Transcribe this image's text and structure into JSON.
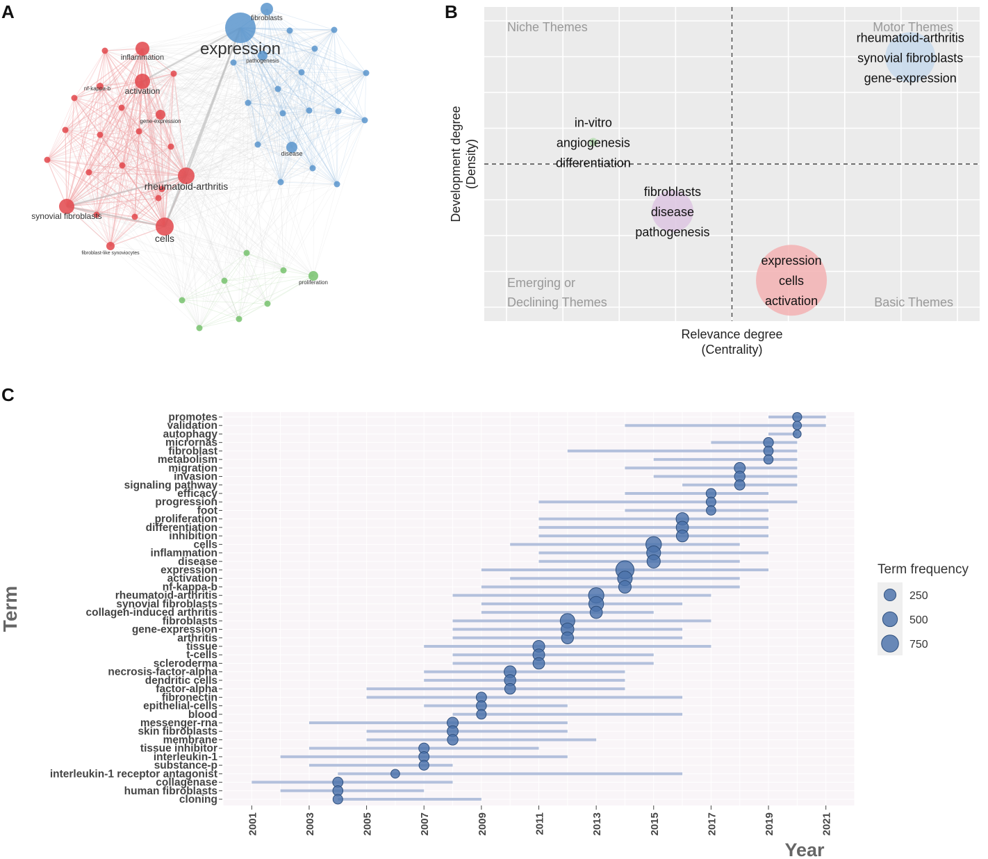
{
  "panels": {
    "a": "A",
    "b": "B",
    "c": "C"
  },
  "colors": {
    "red": "#e2474b",
    "blue": "#5b95cc",
    "green": "#77c26d",
    "point": "#4a72ab",
    "segment": "#b3c0dc"
  },
  "chart_data": [
    {
      "panel": "A",
      "type": "network",
      "clusters": {
        "red": [
          "inflammation",
          "activation",
          "nf-kappa-b",
          "gene-expression",
          "rheumatoid-arthritis",
          "synovial fibroblasts",
          "cells",
          "fibroblast-like synoviocytes"
        ],
        "blue": [
          "fibroblasts",
          "expression",
          "pathogenesis",
          "disease"
        ],
        "green": [
          "proliferation"
        ]
      },
      "nodes": [
        {
          "label": "expression",
          "cluster": "blue",
          "weight": 5.2
        },
        {
          "label": "fibroblasts",
          "cluster": "blue",
          "weight": 2.2
        },
        {
          "label": "pathogenesis",
          "cluster": "blue",
          "weight": 1.6
        },
        {
          "label": "disease",
          "cluster": "blue",
          "weight": 1.9
        },
        {
          "label": "inflammation",
          "cluster": "red",
          "weight": 2.3
        },
        {
          "label": "activation",
          "cluster": "red",
          "weight": 2.6
        },
        {
          "label": "nf-kappa-b",
          "cluster": "red",
          "weight": 1.4
        },
        {
          "label": "gene-expression",
          "cluster": "red",
          "weight": 1.8
        },
        {
          "label": "rheumatoid-arthritis",
          "cluster": "red",
          "weight": 3.0
        },
        {
          "label": "synovial fibroblasts",
          "cluster": "red",
          "weight": 2.6
        },
        {
          "label": "cells",
          "cluster": "red",
          "weight": 3.3
        },
        {
          "label": "fibroblast-like synoviocytes",
          "cluster": "red",
          "weight": 1.3
        },
        {
          "label": "proliferation",
          "cluster": "green",
          "weight": 1.6
        }
      ]
    },
    {
      "panel": "B",
      "type": "scatter",
      "title": "",
      "xlabel": [
        "Relevance degree",
        "(Centrality)"
      ],
      "ylabel": [
        "Development degree",
        "(Density)"
      ],
      "quadrants": {
        "top_left": "Niche Themes",
        "top_right": "Motor Themes",
        "bottom_left": [
          "Emerging or",
          "Declining Themes"
        ],
        "bottom_right": "Basic Themes"
      },
      "grid": true,
      "points": [
        {
          "lines": [
            "rheumatoid-arthritis",
            "synovial fibroblasts",
            "gene-expression"
          ],
          "centrality": 0.86,
          "density": 0.84,
          "size": 6.0,
          "color": "#c7d9ec"
        },
        {
          "lines": [
            "in-vitro",
            "angiogenesis",
            "differentiation"
          ],
          "centrality": 0.22,
          "density": 0.57,
          "size": 1.0,
          "color": "#b8deb4"
        },
        {
          "lines": [
            "fibroblasts",
            "disease",
            "pathogenesis"
          ],
          "centrality": 0.38,
          "density": 0.35,
          "size": 5.0,
          "color": "#ddc6e2"
        },
        {
          "lines": [
            "expression",
            "cells",
            "activation"
          ],
          "centrality": 0.62,
          "density": 0.13,
          "size": 8.5,
          "color": "#f3b1b3"
        }
      ]
    },
    {
      "panel": "C",
      "type": "timeline",
      "ylabel": "Term",
      "xlabel": "Year",
      "xlim": [
        2000,
        2022
      ],
      "xticks": [
        "2001",
        "2003",
        "2005",
        "2007",
        "2009",
        "2011",
        "2013",
        "2015",
        "2017",
        "2019",
        "2021"
      ],
      "legend": {
        "title": "Term frequency",
        "position": "right",
        "labels": [
          "250",
          "500",
          "750"
        ],
        "values": [
          250,
          500,
          750
        ]
      },
      "terms": [
        {
          "term": "promotes",
          "q1": 2019,
          "median": 2020,
          "q3": 2021,
          "freq": 90
        },
        {
          "term": "validation",
          "q1": 2014,
          "median": 2020,
          "q3": 2021,
          "freq": 70
        },
        {
          "term": "autophagy",
          "q1": 2019,
          "median": 2020,
          "q3": 2020,
          "freq": 50
        },
        {
          "term": "micrornas",
          "q1": 2017,
          "median": 2019,
          "q3": 2020,
          "freq": 130
        },
        {
          "term": "fibroblast",
          "q1": 2012,
          "median": 2019,
          "q3": 2020,
          "freq": 110
        },
        {
          "term": "metabolism",
          "q1": 2015,
          "median": 2019,
          "q3": 2020,
          "freq": 100
        },
        {
          "term": "migration",
          "q1": 2014,
          "median": 2018,
          "q3": 2020,
          "freq": 190
        },
        {
          "term": "invasion",
          "q1": 2015,
          "median": 2018,
          "q3": 2020,
          "freq": 170
        },
        {
          "term": "signaling pathway",
          "q1": 2016,
          "median": 2018,
          "q3": 2020,
          "freq": 150
        },
        {
          "term": "efficacy",
          "q1": 2014,
          "median": 2017,
          "q3": 2019,
          "freq": 130
        },
        {
          "term": "progression",
          "q1": 2011,
          "median": 2017,
          "q3": 2020,
          "freq": 120
        },
        {
          "term": "foot",
          "q1": 2014,
          "median": 2017,
          "q3": 2019,
          "freq": 110
        },
        {
          "term": "proliferation",
          "q1": 2011,
          "median": 2016,
          "q3": 2019,
          "freq": 300
        },
        {
          "term": "differentiation",
          "q1": 2011,
          "median": 2016,
          "q3": 2019,
          "freq": 280
        },
        {
          "term": "inhibition",
          "q1": 2011,
          "median": 2016,
          "q3": 2019,
          "freq": 260
        },
        {
          "term": "cells",
          "q1": 2010,
          "median": 2015,
          "q3": 2018,
          "freq": 580
        },
        {
          "term": "inflammation",
          "q1": 2011,
          "median": 2015,
          "q3": 2019,
          "freq": 420
        },
        {
          "term": "disease",
          "q1": 2011,
          "median": 2015,
          "q3": 2018,
          "freq": 360
        },
        {
          "term": "expression",
          "q1": 2009,
          "median": 2014,
          "q3": 2019,
          "freq": 900
        },
        {
          "term": "activation",
          "q1": 2010,
          "median": 2014,
          "q3": 2018,
          "freq": 480
        },
        {
          "term": "nf-kappa-b",
          "q1": 2009,
          "median": 2014,
          "q3": 2018,
          "freq": 300
        },
        {
          "term": "rheumatoid-arthritis",
          "q1": 2008,
          "median": 2013,
          "q3": 2017,
          "freq": 560
        },
        {
          "term": "synovial fibroblasts",
          "q1": 2009,
          "median": 2013,
          "q3": 2016,
          "freq": 500
        },
        {
          "term": "collagen-induced arthritis",
          "q1": 2009,
          "median": 2013,
          "q3": 2015,
          "freq": 280
        },
        {
          "term": "fibroblasts",
          "q1": 2008,
          "median": 2012,
          "q3": 2017,
          "freq": 480
        },
        {
          "term": "gene-expression",
          "q1": 2008,
          "median": 2012,
          "q3": 2016,
          "freq": 320
        },
        {
          "term": "arthritis",
          "q1": 2008,
          "median": 2012,
          "q3": 2016,
          "freq": 260
        },
        {
          "term": "tissue",
          "q1": 2007,
          "median": 2011,
          "q3": 2017,
          "freq": 250
        },
        {
          "term": "t-cells",
          "q1": 2008,
          "median": 2011,
          "q3": 2015,
          "freq": 240
        },
        {
          "term": "scleroderma",
          "q1": 2008,
          "median": 2011,
          "q3": 2015,
          "freq": 230
        },
        {
          "term": "necrosis-factor-alpha",
          "q1": 2007,
          "median": 2010,
          "q3": 2014,
          "freq": 260
        },
        {
          "term": "dendritic cells",
          "q1": 2007,
          "median": 2010,
          "q3": 2014,
          "freq": 220
        },
        {
          "term": "factor-alpha",
          "q1": 2005,
          "median": 2010,
          "q3": 2014,
          "freq": 180
        },
        {
          "term": "fibronectin",
          "q1": 2005,
          "median": 2009,
          "q3": 2016,
          "freq": 150
        },
        {
          "term": "epithelial-cells",
          "q1": 2007,
          "median": 2009,
          "q3": 2012,
          "freq": 140
        },
        {
          "term": "blood",
          "q1": 2008,
          "median": 2009,
          "q3": 2016,
          "freq": 120
        },
        {
          "term": "messenger-rna",
          "q1": 2003,
          "median": 2008,
          "q3": 2012,
          "freq": 200
        },
        {
          "term": "skin fibroblasts",
          "q1": 2005,
          "median": 2008,
          "q3": 2012,
          "freq": 190
        },
        {
          "term": "membrane",
          "q1": 2005,
          "median": 2008,
          "q3": 2013,
          "freq": 170
        },
        {
          "term": "tissue inhibitor",
          "q1": 2003,
          "median": 2007,
          "q3": 2011,
          "freq": 160
        },
        {
          "term": "interleukin-1",
          "q1": 2002,
          "median": 2007,
          "q3": 2012,
          "freq": 150
        },
        {
          "term": "substance-p",
          "q1": 2003,
          "median": 2007,
          "q3": 2008,
          "freq": 130
        },
        {
          "term": "interleukin-1 receptor antagonist",
          "q1": 2004,
          "median": 2006,
          "q3": 2016,
          "freq": 80
        },
        {
          "term": "collagenase",
          "q1": 2001,
          "median": 2004,
          "q3": 2008,
          "freq": 150
        },
        {
          "term": "human fibroblasts",
          "q1": 2002,
          "median": 2004,
          "q3": 2007,
          "freq": 140
        },
        {
          "term": "cloning",
          "q1": 2004,
          "median": 2004,
          "q3": 2009,
          "freq": 120
        }
      ]
    }
  ]
}
